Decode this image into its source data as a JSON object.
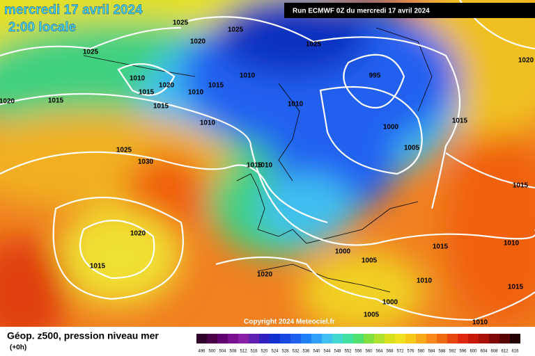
{
  "header": {
    "date": "mercredi 17 avril 2024",
    "time": "2:00 locale",
    "run": "Run ECMWF 0Z du mercredi 17 avril 2024"
  },
  "isobar_labels": [
    "1025",
    "1025",
    "1025",
    "1020",
    "1025",
    "1010",
    "1010",
    "995",
    "1020",
    "1015",
    "1015",
    "1010",
    "1015",
    "1020",
    "1015",
    "1010",
    "1010",
    "1000",
    "1015",
    "1025",
    "1005",
    "1030",
    "1015",
    "1010",
    "1015",
    "1020",
    "1015",
    "1010",
    "1000",
    "1005",
    "1015",
    "1020",
    "1010",
    "1015",
    "1000",
    "1005",
    "1010",
    "1020"
  ],
  "copyright": "Copyright 2024 Meteociel.fr",
  "footer": {
    "title": "Géop. z500, pression niveau mer",
    "lead": "(+0h)"
  },
  "colorbar": [
    496,
    500,
    504,
    508,
    512,
    516,
    520,
    524,
    528,
    532,
    536,
    540,
    544,
    548,
    552,
    556,
    560,
    564,
    568,
    572,
    576,
    580,
    584,
    588,
    592,
    596,
    600,
    604,
    608,
    612,
    616
  ]
}
